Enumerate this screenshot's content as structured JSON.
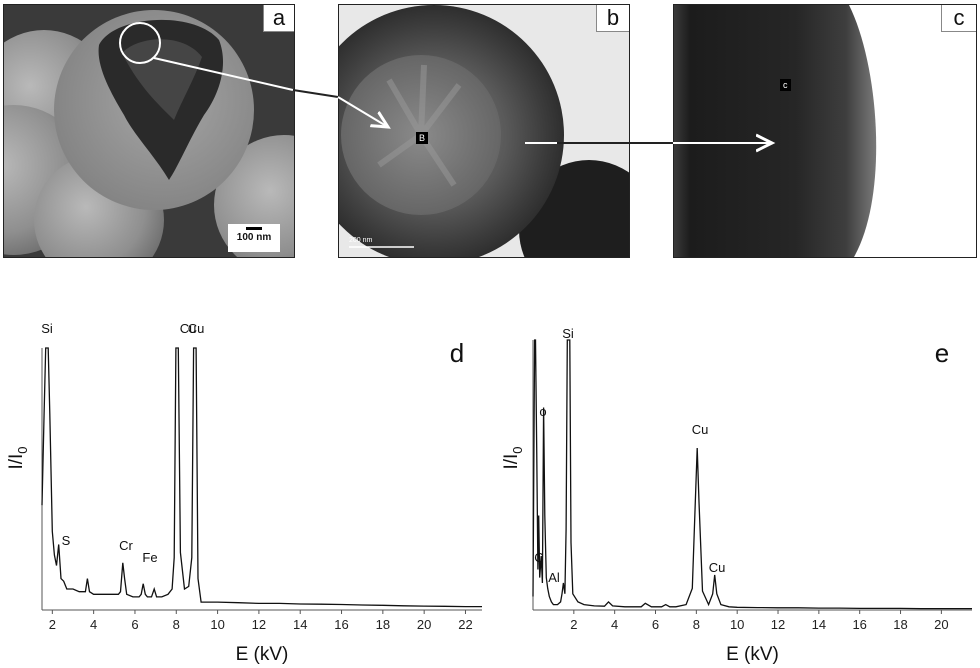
{
  "panels": {
    "a": {
      "label": "a",
      "scale_label": "100 nm"
    },
    "b": {
      "label": "b",
      "scale_label": "200 nm",
      "point_label": "B"
    },
    "c": {
      "label": "c",
      "point_label": "c"
    }
  },
  "chart_data": [
    {
      "type": "line",
      "panel_label": "d",
      "xlabel": "E (kV)",
      "ylabel": "I/I0",
      "xlim": [
        1.5,
        22.8
      ],
      "xticks": [
        2,
        4,
        6,
        8,
        10,
        12,
        14,
        16,
        18,
        20,
        22
      ],
      "ylim": [
        0,
        100
      ],
      "grid": false,
      "peaks": [
        {
          "label": "Si",
          "x": 1.74
        },
        {
          "label": "S",
          "x": 2.31
        },
        {
          "label": "Cr",
          "x": 5.41
        },
        {
          "label": "Fe",
          "x": 6.4
        },
        {
          "label": "Cu",
          "x": 8.04
        },
        {
          "label": "Cu",
          "x": 8.9
        }
      ],
      "series": [
        {
          "x": [
            1.5,
            1.6,
            1.68,
            1.74,
            1.8,
            1.88,
            2.0,
            2.1,
            2.2,
            2.31,
            2.42,
            2.55,
            2.7,
            3.0,
            3.3,
            3.6,
            3.7,
            3.8,
            4.0,
            4.4,
            4.8,
            5.2,
            5.3,
            5.41,
            5.5,
            5.6,
            5.9,
            6.2,
            6.3,
            6.4,
            6.5,
            6.6,
            6.8,
            6.93,
            7.05,
            7.3,
            7.6,
            7.8,
            7.9,
            7.98,
            8.04,
            8.1,
            8.2,
            8.4,
            8.6,
            8.75,
            8.84,
            8.9,
            8.96,
            9.05,
            9.2,
            9.5,
            10,
            11,
            12,
            13,
            14,
            15,
            16,
            17,
            18,
            19,
            20,
            21,
            22,
            22.8
          ],
          "values": [
            40,
            75,
            100,
            100,
            100,
            75,
            30,
            21,
            17,
            25,
            12,
            11,
            8,
            8,
            7,
            7,
            12,
            7,
            6,
            6,
            6,
            6,
            7,
            18,
            12,
            6,
            5,
            5,
            6,
            10,
            6,
            5,
            5,
            8,
            5,
            5,
            6,
            8,
            20,
            100,
            100,
            100,
            22,
            8,
            9,
            20,
            100,
            100,
            100,
            12,
            3,
            3,
            3,
            2.8,
            2.5,
            2.5,
            2.3,
            2.2,
            2.1,
            1.9,
            1.8,
            1.6,
            1.5,
            1.4,
            1.3,
            1.3
          ]
        }
      ]
    },
    {
      "type": "line",
      "panel_label": "e",
      "xlabel": "E (kV)",
      "ylabel": "I/I0",
      "xlim": [
        0,
        21.5
      ],
      "xticks": [
        2,
        4,
        6,
        8,
        10,
        12,
        14,
        16,
        18,
        20
      ],
      "ylim": [
        0,
        100
      ],
      "grid": false,
      "peaks": [
        {
          "label": "C",
          "x": 0.28
        },
        {
          "label": "o",
          "x": 0.52
        },
        {
          "label": "Al",
          "x": 1.49
        },
        {
          "label": "Si",
          "x": 1.74
        },
        {
          "label": "Cu",
          "x": 8.04
        },
        {
          "label": "Cu",
          "x": 8.9
        }
      ],
      "series": [
        {
          "x": [
            0,
            0.08,
            0.12,
            0.18,
            0.24,
            0.28,
            0.33,
            0.4,
            0.46,
            0.52,
            0.58,
            0.65,
            0.72,
            0.8,
            0.9,
            1.0,
            1.2,
            1.35,
            1.42,
            1.49,
            1.56,
            1.62,
            1.68,
            1.74,
            1.8,
            1.86,
            1.95,
            2.2,
            2.5,
            3,
            3.5,
            3.7,
            3.9,
            4.5,
            5,
            5.3,
            5.5,
            5.8,
            6.3,
            6.5,
            6.7,
            7,
            7.5,
            7.8,
            7.95,
            8.04,
            8.13,
            8.3,
            8.6,
            8.8,
            8.9,
            9.0,
            9.2,
            9.6,
            10,
            11,
            12,
            13,
            14,
            15,
            16,
            17,
            18,
            19,
            20,
            21.5
          ],
          "values": [
            5,
            100,
            100,
            60,
            15,
            35,
            12,
            20,
            10,
            75,
            35,
            12,
            8,
            5,
            3,
            2,
            2,
            3,
            6,
            10,
            6,
            30,
            100,
            100,
            100,
            25,
            6,
            3,
            2,
            1.5,
            1.4,
            3,
            1.5,
            1.2,
            1.2,
            1.2,
            2.5,
            1.2,
            1.2,
            2,
            1.2,
            1.2,
            2,
            8,
            40,
            60,
            40,
            7,
            2,
            6,
            13,
            6,
            2,
            1.2,
            1,
            0.9,
            0.8,
            0.8,
            0.7,
            0.7,
            0.6,
            0.6,
            0.6,
            0.5,
            0.5,
            0.5
          ]
        }
      ]
    }
  ]
}
